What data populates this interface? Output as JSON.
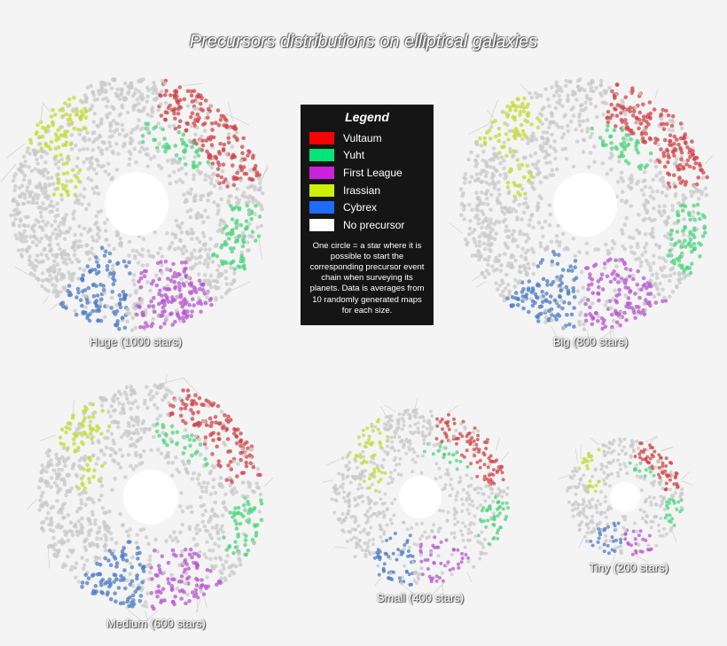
{
  "title": "Precursors distributions on elliptical galaxies",
  "legend": {
    "title": "Legend",
    "items": [
      {
        "label": "Vultaum",
        "color": "#ff0000"
      },
      {
        "label": "Yuht",
        "color": "#00e676"
      },
      {
        "label": "First League",
        "color": "#cc22dd"
      },
      {
        "label": "Irassian",
        "color": "#ccf000"
      },
      {
        "label": "Cybrex",
        "color": "#1e6cff"
      },
      {
        "label": "No precursor",
        "color": "#ffffff"
      }
    ],
    "note": "One circle = a star where it is possible to start the corresponding precursor event chain when surveying its planets. Data is averages from 10 randomly generated maps for each size."
  },
  "chart_data": {
    "type": "scatter",
    "title": "Precursors distributions on elliptical galaxies",
    "series_colors": {
      "Vultaum": "#d0454a",
      "Yuht": "#4fd47f",
      "First League": "#b658cf",
      "Irassian": "#c3db3c",
      "Cybrex": "#4e7cc4",
      "No precursor": "#c9c9c9"
    },
    "galaxies": [
      {
        "label": "Huge (1000 stars)",
        "stars": 1000
      },
      {
        "label": "Big (800 stars)",
        "stars": 800
      },
      {
        "label": "Medium (600 stars)",
        "stars": 600
      },
      {
        "label": "Small (400 stars)",
        "stars": 400
      },
      {
        "label": "Tiny (200 stars)",
        "stars": 200
      }
    ]
  }
}
